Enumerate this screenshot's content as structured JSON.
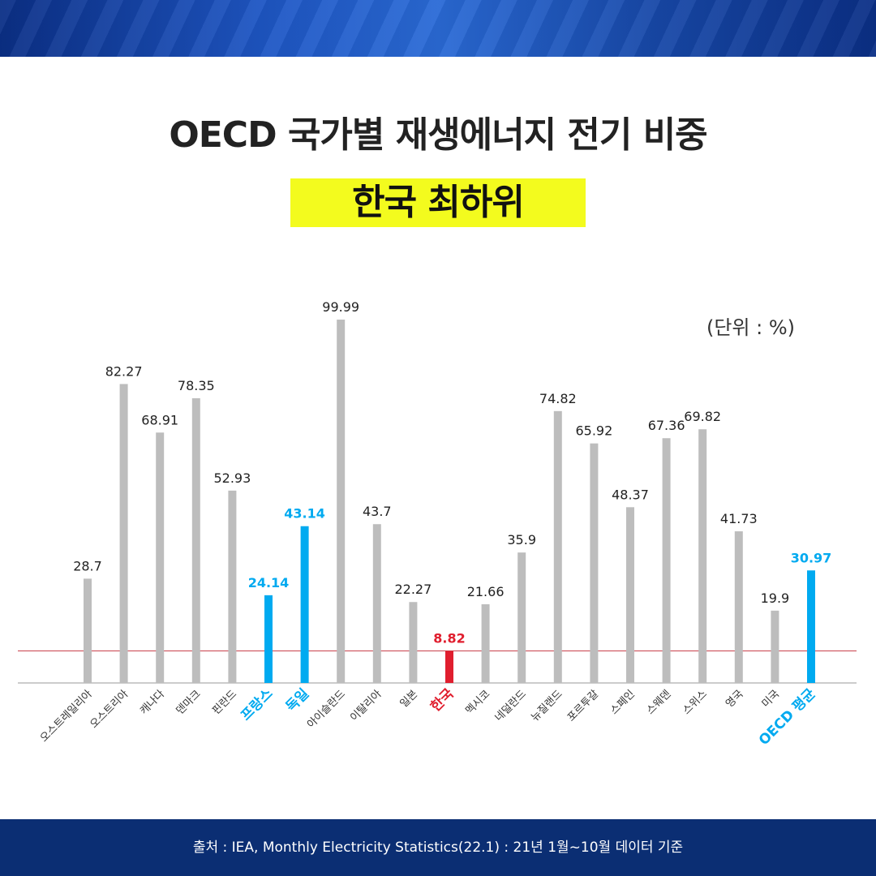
{
  "title": "OECD 국가별 재생에너지 전기 비중",
  "subtitle": "한국 최하위",
  "unit_label": "(단위 : %)",
  "source": "출처 : IEA, Monthly Electricity Statistics(22.1) : 21년 1월~10월 데이터 기준",
  "colors": {
    "default": "#bdbdbd",
    "highlight": "#00aaf0",
    "korea": "#e01e2e",
    "reference_line": "#c9404c",
    "title_box": "#f3fb1e"
  },
  "chart_data": {
    "type": "bar",
    "ylim": [
      0,
      100
    ],
    "grid": false,
    "categories": [
      "오스트레일리아",
      "오스트리아",
      "캐나다",
      "덴마크",
      "핀란드",
      "프랑스",
      "독일",
      "아이슬란드",
      "이탈리아",
      "일본",
      "한국",
      "멕시코",
      "네덜란드",
      "뉴질랜드",
      "포르투갈",
      "스페인",
      "스웨덴",
      "스위스",
      "영국",
      "미국",
      "OECD 평균"
    ],
    "values": [
      28.7,
      82.27,
      68.91,
      78.35,
      52.93,
      24.14,
      43.14,
      99.99,
      43.7,
      22.27,
      8.82,
      21.66,
      35.9,
      74.82,
      65.92,
      48.37,
      67.36,
      69.82,
      41.73,
      19.9,
      30.97
    ],
    "value_labels": [
      "28.7",
      "82.27",
      "68.91",
      "78.35",
      "52.93",
      "24.14",
      "43.14",
      "99.99",
      "43.7",
      "22.27",
      "8.82",
      "21.66",
      "35.9",
      "74.82",
      "65.92",
      "48.37",
      "67.36",
      "69.82",
      "41.73",
      "19.9",
      "30.97"
    ],
    "highlight": [
      "default",
      "default",
      "default",
      "default",
      "default",
      "highlight",
      "highlight",
      "default",
      "default",
      "default",
      "korea",
      "default",
      "default",
      "default",
      "default",
      "default",
      "default",
      "default",
      "default",
      "default",
      "highlight"
    ],
    "reference_line": 8.82
  }
}
